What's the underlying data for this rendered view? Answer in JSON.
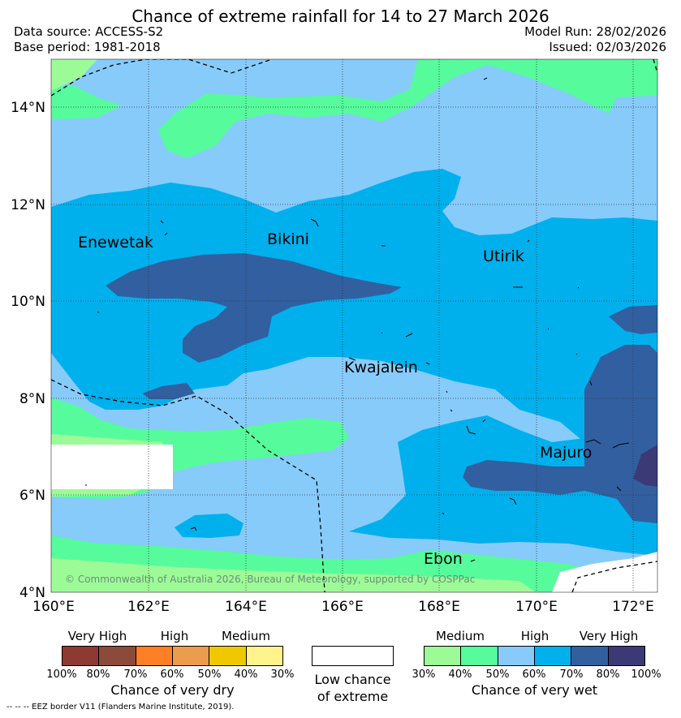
{
  "title": "Chance of extreme rainfall for 14 to 27 March 2026",
  "data_source": "Data source: ACCESS-S2",
  "base_period": "Base period: 1981-2018",
  "model_run": "Model Run: 28/02/2026",
  "issued": "Issued: 02/03/2026",
  "copyright": "© Commonwealth of Australia 2026, Bureau of Meteorology, supported by COSPPac",
  "eez_note": "--  --  -- EEZ border V11 (Flanders Marine Institute, 2019).",
  "map": {
    "lon_ticks": [
      "160°E",
      "162°E",
      "164°E",
      "166°E",
      "168°E",
      "170°E",
      "172°E"
    ],
    "lat_ticks": [
      "14°N",
      "12°N",
      "10°N",
      "8°N",
      "6°N",
      "4°N"
    ],
    "places": [
      {
        "name": "Enewetak"
      },
      {
        "name": "Bikini"
      },
      {
        "name": "Utirik"
      },
      {
        "name": "Kwajalein"
      },
      {
        "name": "Majuro"
      },
      {
        "name": "Ebon"
      }
    ]
  },
  "legend": {
    "dry": {
      "categories": [
        "Very High",
        "High",
        "Medium"
      ],
      "ticks": [
        "100%",
        "80%",
        "70%",
        "60%",
        "50%",
        "40%",
        "30%"
      ],
      "colors": [
        "#8c3a32",
        "#8b4a3a",
        "#ff7f27",
        "#eb9c4c",
        "#f0c800",
        "#fff38c"
      ],
      "caption": "Chance of very dry"
    },
    "low": {
      "caption_line1": "Low chance",
      "caption_line2": "of extreme",
      "color": "#ffffff"
    },
    "wet": {
      "categories": [
        "Medium",
        "High",
        "Very High"
      ],
      "ticks": [
        "30%",
        "40%",
        "50%",
        "60%",
        "70%",
        "80%",
        "100%"
      ],
      "colors": [
        "#9dfb97",
        "#56fb9c",
        "#87cbfb",
        "#00b0ed",
        "#325fa0",
        "#3b3a76"
      ],
      "caption": "Chance of very wet"
    }
  }
}
